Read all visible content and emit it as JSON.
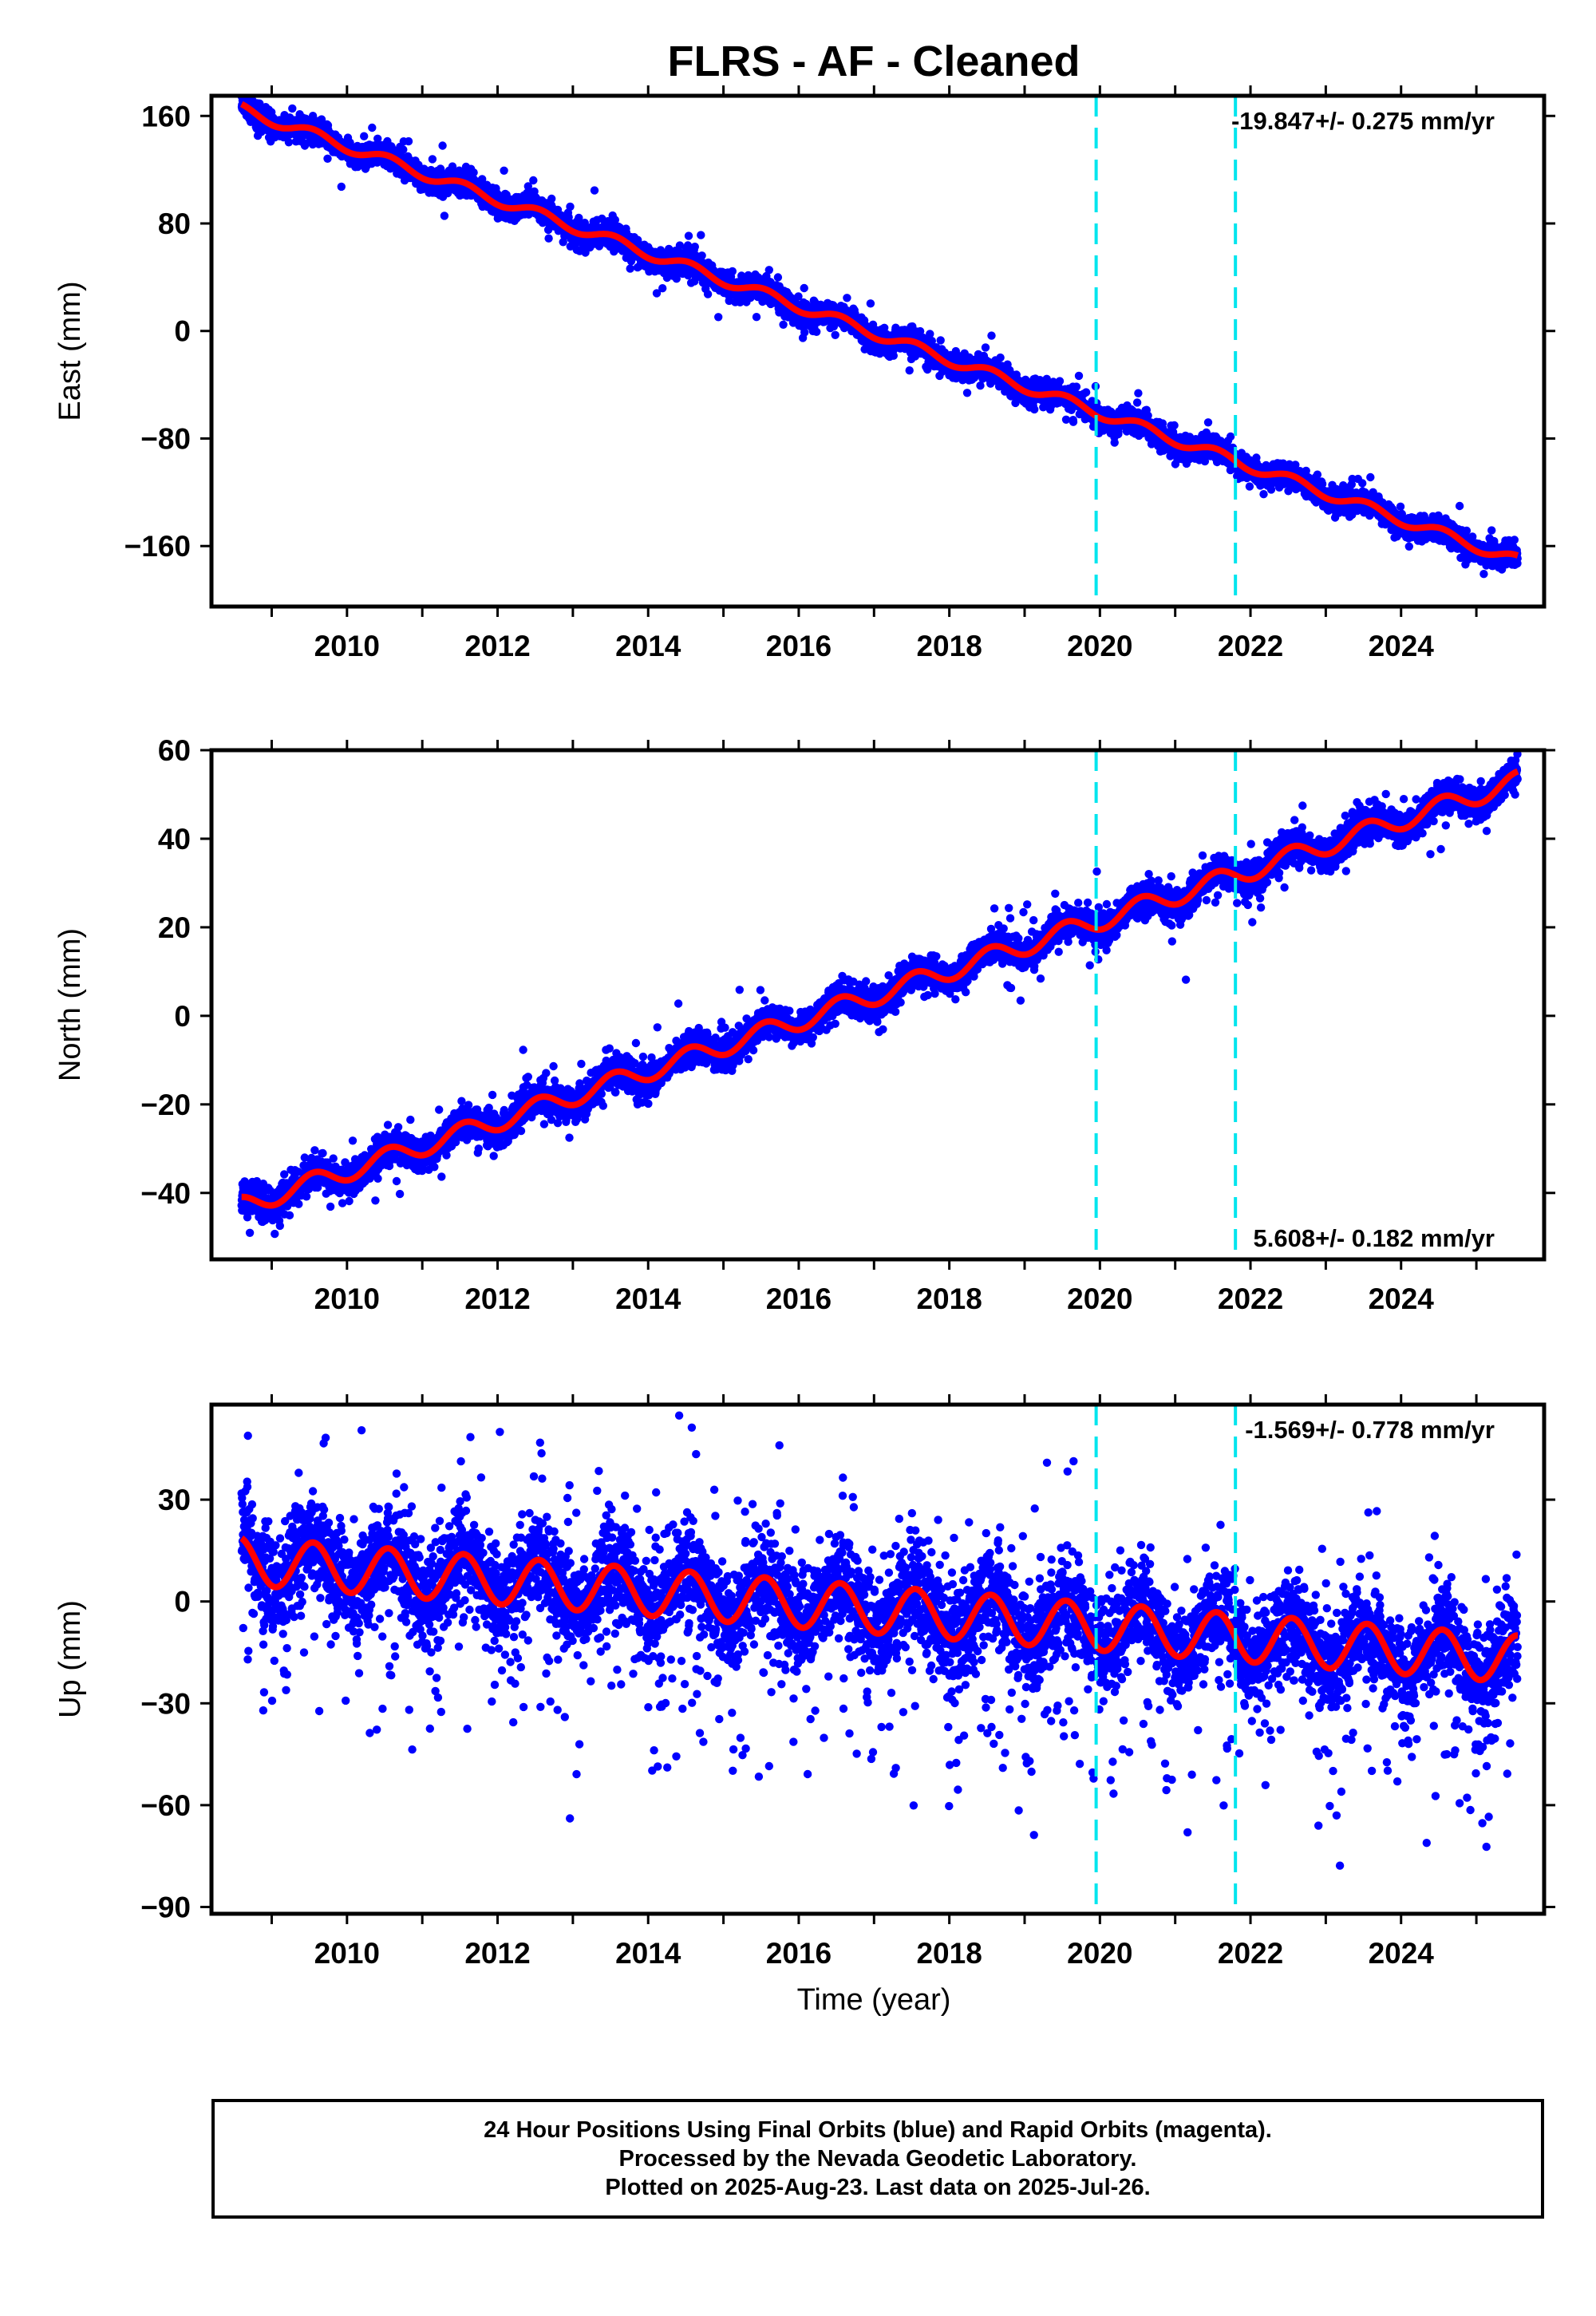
{
  "title": "FLRS  - AF - Cleaned",
  "xlabel": "Time (year)",
  "footer": {
    "line1": "24 Hour Positions Using Final Orbits (blue) and Rapid Orbits (magenta).",
    "line2": "Processed by the Nevada Geodetic Laboratory.",
    "line3": "Plotted on 2025-Aug-23. Last data on 2025-Jul-26."
  },
  "colors": {
    "points": "#0000ff",
    "model": "#ff0000",
    "events": "#00e5ee",
    "frame": "#000000"
  },
  "chart_data": [
    {
      "type": "scatter",
      "component": "East",
      "ylabel": "East (mm)",
      "rate_label": "-19.847+/- 0.275 mm/yr",
      "rate_position": "top-right",
      "xlim": [
        2008.2,
        2025.9
      ],
      "ylim": [
        -205,
        175
      ],
      "x_ticks": [
        2010,
        2012,
        2014,
        2016,
        2018,
        2020,
        2022,
        2024
      ],
      "y_ticks": [
        -160,
        -80,
        0,
        80,
        160
      ],
      "event_lines_x": [
        2019.95,
        2021.8
      ],
      "model": {
        "x0": 2008.6,
        "x1": 2025.55,
        "y0": 165,
        "y1": -171,
        "annual_amp": 4.0
      },
      "scatter": {
        "noise_sd": 4.5,
        "outlier_sd": 10,
        "outlier_frac": 0.05,
        "seed": 11
      }
    },
    {
      "type": "scatter",
      "component": "North",
      "ylabel": "North (mm)",
      "rate_label": "5.608+/- 0.182 mm/yr",
      "rate_position": "bottom-right",
      "xlim": [
        2008.2,
        2025.9
      ],
      "ylim": [
        -55,
        60
      ],
      "x_ticks": [
        2010,
        2012,
        2014,
        2016,
        2018,
        2020,
        2022,
        2024
      ],
      "y_ticks": [
        -40,
        -20,
        0,
        20,
        40,
        60
      ],
      "event_lines_x": [
        2019.95,
        2021.8
      ],
      "model": {
        "x0": 2008.6,
        "x1": 2025.55,
        "y0": -43,
        "y1": 53,
        "annual_amp": 2.2
      },
      "scatter": {
        "noise_sd": 1.8,
        "outlier_sd": 4.5,
        "outlier_frac": 0.05,
        "seed": 23
      }
    },
    {
      "type": "scatter",
      "component": "Up",
      "ylabel": "Up (mm)",
      "rate_label": "-1.569+/- 0.778 mm/yr",
      "rate_position": "top-right",
      "xlim": [
        2008.2,
        2025.9
      ],
      "ylim": [
        -92,
        58
      ],
      "x_ticks": [
        2010,
        2012,
        2014,
        2016,
        2018,
        2020,
        2022,
        2024
      ],
      "y_ticks": [
        -90,
        -60,
        -30,
        0,
        30
      ],
      "event_lines_x": [
        2019.95,
        2021.8
      ],
      "model": {
        "x0": 2008.6,
        "x1": 2025.55,
        "y0": 12,
        "y1": -17,
        "annual_amp": 7.0
      },
      "scatter": {
        "noise_sd": 7.0,
        "outlier_sd": 20,
        "outlier_frac": 0.08,
        "seed": 37
      }
    }
  ]
}
